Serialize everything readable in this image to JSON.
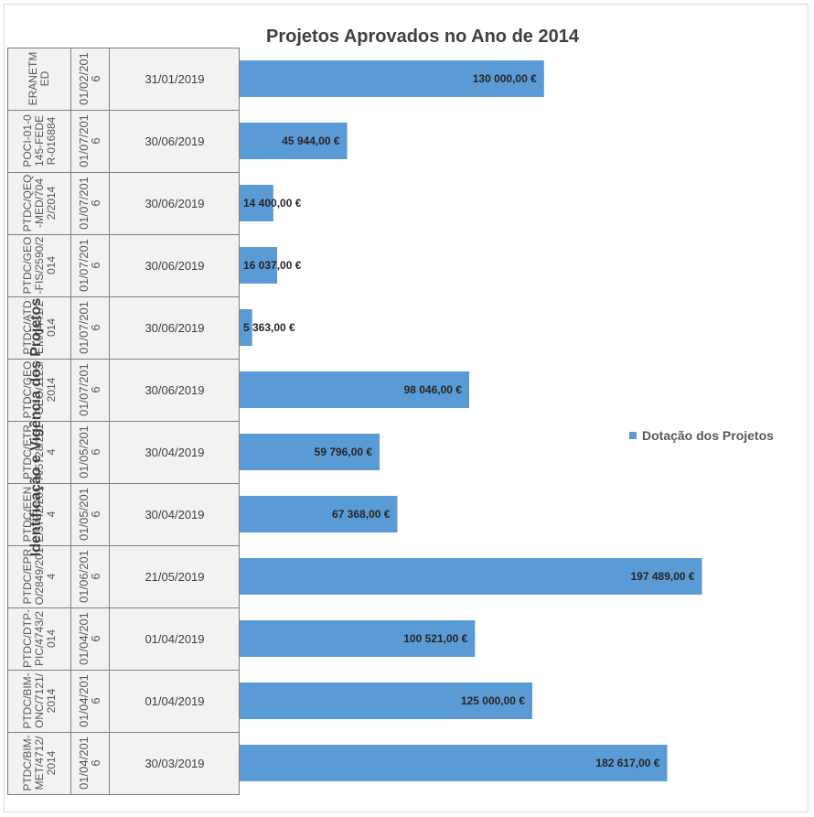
{
  "chart_data": {
    "type": "bar",
    "orientation": "horizontal",
    "title": "Projetos Aprovados no Ano de 2014",
    "y_axis_label": "Identificação e Vigência dos Projetos",
    "categories": [
      "ERANETMED",
      "POCI-01-0145-FEDER-016884",
      "PTDC/QEQ-MED/7042/2014",
      "PTDC/GEO-FIS/2590/2014",
      "PTDC/ATDEM/0441/2014",
      "PTDC/GEO-GEO/1123/2014",
      "PTDC/ETRA/5728/2014",
      "PTDC/EENE/5742/2014",
      "PTDC/EPRO/2849/2014",
      "PTDC/DTP-PIC/4743/2014",
      "PTDC/BIM-ONC/7121/2014",
      "PTDC/BIM-MET/4712/2014"
    ],
    "start_dates": [
      "01/02/2016",
      "01/07/2016",
      "01/07/2016",
      "01/07/2016",
      "01/07/2016",
      "01/07/2016",
      "01/05/2016",
      "01/05/2016",
      "01/06/2016",
      "01/04/2016",
      "01/04/2016",
      "01/04/2016"
    ],
    "end_dates": [
      "31/01/2019",
      "30/06/2019",
      "30/06/2019",
      "30/06/2019",
      "30/06/2019",
      "30/06/2019",
      "30/04/2019",
      "30/04/2019",
      "21/05/2019",
      "01/04/2019",
      "01/04/2019",
      "30/03/2019"
    ],
    "series": [
      {
        "name": "Dotação dos Projetos",
        "color": "#5b9bd5",
        "values": [
          130000,
          45944,
          14400,
          16037,
          5363,
          98046,
          59796,
          67368,
          197489,
          100521,
          125000,
          182617
        ],
        "value_labels": [
          "130 000,00 €",
          "45 944,00 €",
          "14 400,00 €",
          "16 037,00 €",
          "5 363,00 €",
          "98 046,00 €",
          "59 796,00 €",
          "67 368,00 €",
          "197 489,00 €",
          "100 521,00 €",
          "125 000,00 €",
          "182 617,00 €"
        ]
      }
    ],
    "xlim": [
      0,
      200000
    ],
    "legend": "right"
  }
}
